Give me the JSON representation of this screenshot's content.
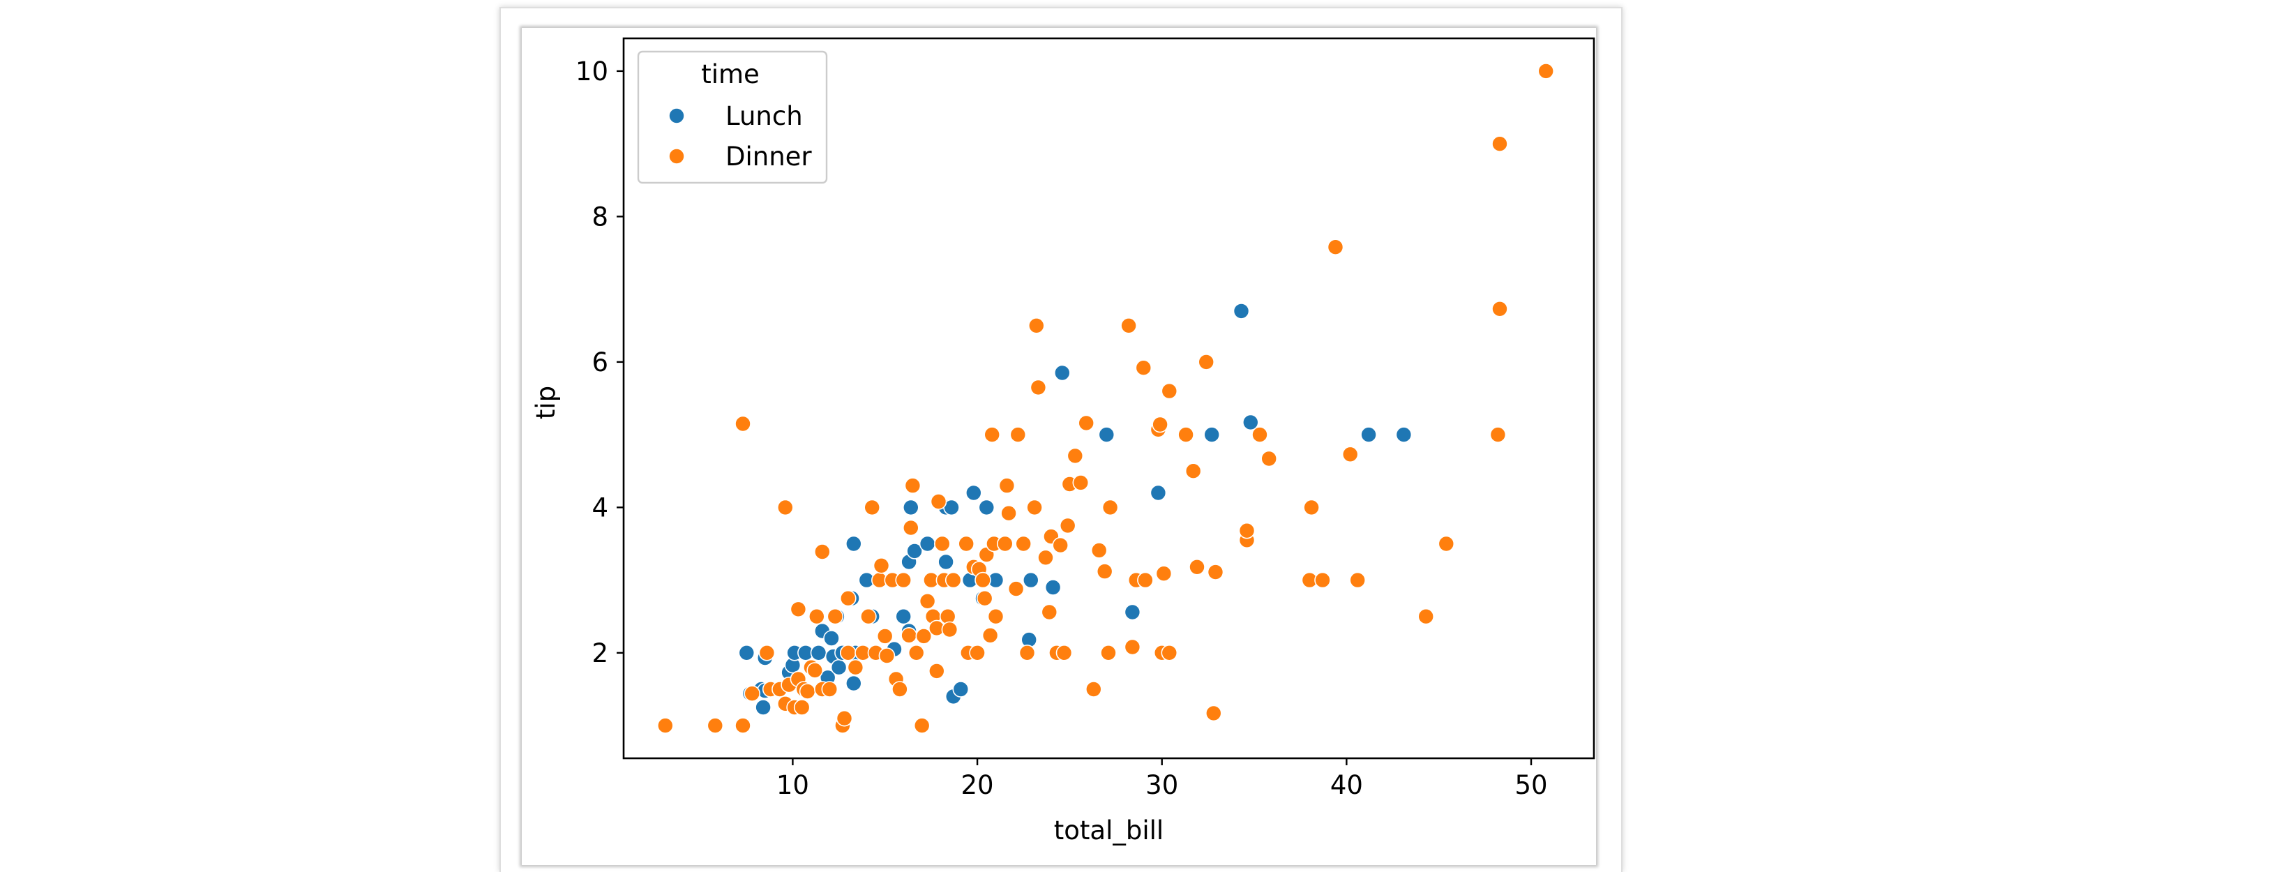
{
  "chart_data": {
    "type": "scatter",
    "title": "",
    "xlabel": "total_bill",
    "ylabel": "tip",
    "xlim": [
      0.84,
      53.4
    ],
    "ylim": [
      0.55,
      10.45
    ],
    "xticks": [
      10,
      20,
      30,
      40,
      50
    ],
    "yticks": [
      2,
      4,
      6,
      8,
      10
    ],
    "grid": false,
    "legend": {
      "title": "time",
      "placement": "upper-left",
      "entries": [
        "Lunch",
        "Dinner"
      ]
    },
    "colors": {
      "Lunch": "#1f77b4",
      "Dinner": "#ff7f0e"
    },
    "series": [
      {
        "name": "Lunch",
        "points": [
          [
            7.5,
            2.0
          ],
          [
            7.7,
            1.44
          ],
          [
            8.3,
            1.5
          ],
          [
            8.4,
            1.25
          ],
          [
            8.5,
            1.93
          ],
          [
            8.5,
            1.48
          ],
          [
            9.8,
            1.73
          ],
          [
            10.0,
            1.83
          ],
          [
            10.1,
            2.0
          ],
          [
            10.7,
            2.0
          ],
          [
            11.4,
            2.0
          ],
          [
            11.6,
            2.3
          ],
          [
            11.9,
            1.66
          ],
          [
            12.1,
            2.2
          ],
          [
            12.2,
            1.95
          ],
          [
            12.4,
            2.5
          ],
          [
            12.5,
            1.8
          ],
          [
            12.7,
            2.0
          ],
          [
            13.0,
            2.0
          ],
          [
            13.2,
            2.75
          ],
          [
            13.3,
            1.58
          ],
          [
            13.3,
            3.5
          ],
          [
            13.4,
            2.0
          ],
          [
            14.0,
            3.0
          ],
          [
            14.3,
            2.5
          ],
          [
            15.5,
            2.05
          ],
          [
            16.0,
            2.5
          ],
          [
            16.3,
            2.3
          ],
          [
            16.3,
            3.25
          ],
          [
            16.4,
            4.0
          ],
          [
            16.6,
            3.4
          ],
          [
            17.3,
            3.5
          ],
          [
            17.5,
            3.0
          ],
          [
            18.3,
            4.0
          ],
          [
            18.3,
            3.25
          ],
          [
            18.6,
            4.0
          ],
          [
            18.7,
            1.4
          ],
          [
            19.1,
            1.5
          ],
          [
            19.6,
            3.0
          ],
          [
            19.8,
            4.2
          ],
          [
            20.3,
            2.75
          ],
          [
            20.5,
            4.0
          ],
          [
            21.0,
            3.0
          ],
          [
            22.8,
            2.18
          ],
          [
            22.9,
            3.0
          ],
          [
            24.1,
            2.9
          ],
          [
            24.6,
            5.85
          ],
          [
            27.0,
            5.0
          ],
          [
            28.4,
            2.56
          ],
          [
            29.8,
            4.2
          ],
          [
            32.7,
            5.0
          ],
          [
            34.3,
            6.7
          ],
          [
            34.8,
            5.17
          ],
          [
            41.2,
            5.0
          ],
          [
            43.1,
            5.0
          ]
        ]
      },
      {
        "name": "Dinner",
        "points": [
          [
            3.1,
            1.0
          ],
          [
            5.8,
            1.0
          ],
          [
            7.3,
            1.0
          ],
          [
            7.3,
            5.15
          ],
          [
            7.8,
            1.44
          ],
          [
            8.6,
            2.0
          ],
          [
            8.8,
            1.5
          ],
          [
            9.3,
            1.5
          ],
          [
            9.6,
            4.0
          ],
          [
            9.6,
            1.3
          ],
          [
            9.8,
            1.56
          ],
          [
            10.1,
            1.25
          ],
          [
            10.3,
            2.6
          ],
          [
            10.3,
            1.64
          ],
          [
            10.5,
            1.25
          ],
          [
            10.6,
            1.5
          ],
          [
            10.8,
            1.47
          ],
          [
            11.0,
            1.8
          ],
          [
            11.2,
            1.76
          ],
          [
            11.3,
            2.5
          ],
          [
            11.6,
            1.5
          ],
          [
            11.6,
            3.39
          ],
          [
            12.0,
            1.5
          ],
          [
            12.3,
            2.5
          ],
          [
            12.7,
            1.0
          ],
          [
            12.8,
            1.1
          ],
          [
            13.0,
            2.75
          ],
          [
            13.0,
            2.0
          ],
          [
            13.4,
            1.8
          ],
          [
            13.8,
            2.0
          ],
          [
            14.1,
            2.5
          ],
          [
            14.3,
            4.0
          ],
          [
            14.5,
            2.0
          ],
          [
            14.7,
            3.0
          ],
          [
            14.8,
            3.2
          ],
          [
            15.0,
            2.23
          ],
          [
            15.1,
            1.96
          ],
          [
            15.4,
            3.0
          ],
          [
            15.6,
            1.64
          ],
          [
            15.8,
            1.5
          ],
          [
            16.0,
            3.0
          ],
          [
            16.3,
            2.24
          ],
          [
            16.4,
            3.72
          ],
          [
            16.5,
            4.3
          ],
          [
            16.7,
            2.0
          ],
          [
            17.0,
            1.0
          ],
          [
            17.1,
            2.23
          ],
          [
            17.3,
            2.71
          ],
          [
            17.5,
            3.0
          ],
          [
            17.6,
            2.5
          ],
          [
            17.8,
            1.75
          ],
          [
            17.8,
            2.34
          ],
          [
            17.9,
            4.08
          ],
          [
            18.1,
            3.5
          ],
          [
            18.2,
            3.0
          ],
          [
            18.4,
            2.5
          ],
          [
            18.5,
            2.32
          ],
          [
            18.7,
            3.0
          ],
          [
            19.4,
            3.5
          ],
          [
            19.5,
            2.0
          ],
          [
            19.8,
            3.18
          ],
          [
            20.0,
            2.0
          ],
          [
            20.1,
            3.15
          ],
          [
            20.3,
            3.0
          ],
          [
            20.4,
            2.75
          ],
          [
            20.5,
            3.35
          ],
          [
            20.7,
            2.24
          ],
          [
            20.8,
            5.0
          ],
          [
            20.9,
            3.5
          ],
          [
            21.0,
            2.5
          ],
          [
            21.5,
            3.5
          ],
          [
            21.6,
            4.3
          ],
          [
            21.7,
            3.92
          ],
          [
            22.1,
            2.88
          ],
          [
            22.2,
            5.0
          ],
          [
            22.5,
            3.5
          ],
          [
            22.7,
            2.0
          ],
          [
            23.1,
            4.0
          ],
          [
            23.2,
            6.5
          ],
          [
            23.3,
            5.65
          ],
          [
            23.7,
            3.31
          ],
          [
            23.9,
            2.56
          ],
          [
            24.0,
            3.6
          ],
          [
            24.3,
            2.0
          ],
          [
            24.5,
            3.48
          ],
          [
            24.7,
            2.0
          ],
          [
            24.9,
            3.75
          ],
          [
            25.0,
            4.32
          ],
          [
            25.3,
            4.71
          ],
          [
            25.6,
            4.34
          ],
          [
            25.9,
            5.16
          ],
          [
            26.3,
            1.5
          ],
          [
            26.6,
            3.41
          ],
          [
            26.9,
            3.12
          ],
          [
            27.1,
            2.0
          ],
          [
            27.2,
            4.0
          ],
          [
            28.2,
            6.5
          ],
          [
            28.4,
            2.08
          ],
          [
            28.6,
            3.0
          ],
          [
            29.0,
            5.92
          ],
          [
            29.1,
            3.0
          ],
          [
            29.8,
            5.07
          ],
          [
            29.9,
            5.14
          ],
          [
            30.0,
            2.0
          ],
          [
            30.1,
            3.09
          ],
          [
            30.4,
            5.6
          ],
          [
            30.4,
            2.0
          ],
          [
            31.3,
            5.0
          ],
          [
            31.7,
            4.5
          ],
          [
            31.9,
            3.18
          ],
          [
            32.4,
            6.0
          ],
          [
            32.8,
            1.17
          ],
          [
            32.9,
            3.11
          ],
          [
            34.6,
            3.55
          ],
          [
            34.6,
            3.68
          ],
          [
            35.3,
            5.0
          ],
          [
            35.8,
            4.67
          ],
          [
            38.0,
            3.0
          ],
          [
            38.1,
            4.0
          ],
          [
            38.7,
            3.0
          ],
          [
            39.4,
            7.58
          ],
          [
            40.2,
            4.73
          ],
          [
            40.6,
            3.0
          ],
          [
            44.3,
            2.5
          ],
          [
            45.4,
            3.5
          ],
          [
            48.2,
            5.0
          ],
          [
            48.3,
            6.73
          ],
          [
            48.3,
            9.0
          ],
          [
            50.8,
            10.0
          ]
        ]
      }
    ]
  }
}
